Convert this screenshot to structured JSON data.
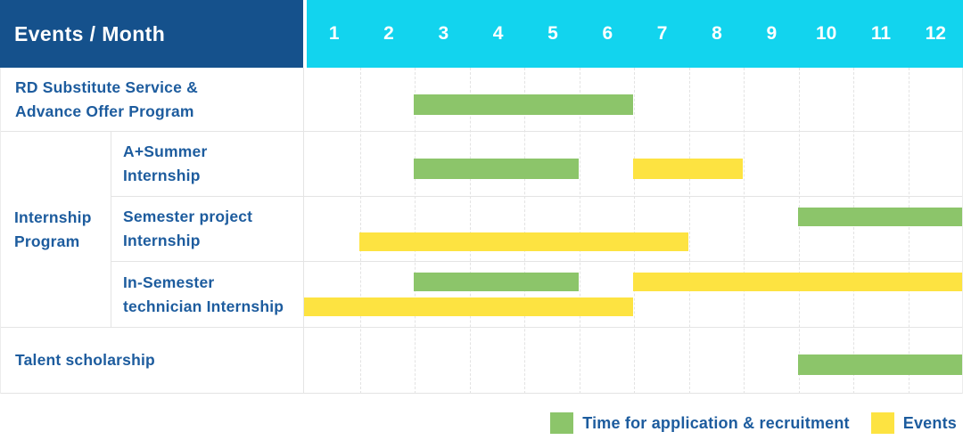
{
  "colors": {
    "header_bg": "#15518c",
    "months_bg": "#12d4ee",
    "bar_green": "#8cc56a",
    "bar_yellow": "#fde341",
    "label_text": "#1d5c9e",
    "grid_line": "#e4e4e4"
  },
  "header": {
    "title": "Events / Month",
    "months": [
      "1",
      "2",
      "3",
      "4",
      "5",
      "6",
      "7",
      "8",
      "9",
      "10",
      "11",
      "12"
    ]
  },
  "rows": {
    "rd": {
      "label": "RD Substitute Service &\nAdvance Offer Program",
      "bars": [
        {
          "color": "green",
          "line": "single",
          "start": 3,
          "end": 7
        }
      ]
    },
    "internship": {
      "label": "Internship\nProgram",
      "subrows": [
        {
          "label": "A+Summer\nInternship",
          "bars": [
            {
              "color": "green",
              "line": "single",
              "start": 3,
              "end": 6
            },
            {
              "color": "yellow",
              "line": "single",
              "start": 7,
              "end": 9
            }
          ]
        },
        {
          "label": "Semester project\nInternship",
          "bars": [
            {
              "color": "green",
              "line": "upper",
              "start": 10,
              "end": 13
            },
            {
              "color": "yellow",
              "line": "lower",
              "start": 2,
              "end": 8
            }
          ]
        },
        {
          "label": "In-Semester\ntechnician Internship",
          "bars": [
            {
              "color": "green",
              "line": "upper",
              "start": 3,
              "end": 6
            },
            {
              "color": "yellow",
              "line": "upper",
              "start": 7,
              "end": 13
            },
            {
              "color": "yellow",
              "line": "lower",
              "start": 1,
              "end": 7
            }
          ]
        }
      ]
    },
    "talent": {
      "label": "Talent scholarship",
      "bars": [
        {
          "color": "green",
          "line": "single",
          "start": 10,
          "end": 13
        }
      ]
    }
  },
  "legend": {
    "items": [
      {
        "color": "green",
        "label": "Time for application & recruitment"
      },
      {
        "color": "yellow",
        "label": "Events"
      }
    ]
  },
  "chart_data": {
    "type": "bar",
    "subtype": "gantt-schedule",
    "title": "Events / Month",
    "x_axis": {
      "label": "Month",
      "ticks": [
        "1",
        "2",
        "3",
        "4",
        "5",
        "6",
        "7",
        "8",
        "9",
        "10",
        "11",
        "12"
      ],
      "range": [
        1,
        12
      ]
    },
    "legend_entries": [
      "Time for application & recruitment",
      "Events"
    ],
    "legend_position": "bottom-right",
    "grid": "dashed-vertical-month-lines",
    "rows": [
      {
        "event": "RD Substitute Service & Advance Offer Program",
        "group": null,
        "application_recruitment_months": [
          [
            3,
            6
          ]
        ],
        "events_months": []
      },
      {
        "event": "A+Summer Internship",
        "group": "Internship Program",
        "application_recruitment_months": [
          [
            3,
            5
          ]
        ],
        "events_months": [
          [
            7,
            8
          ]
        ]
      },
      {
        "event": "Semester project Internship",
        "group": "Internship Program",
        "application_recruitment_months": [
          [
            10,
            12
          ]
        ],
        "events_months": [
          [
            2,
            7
          ]
        ]
      },
      {
        "event": "In-Semester technician Internship",
        "group": "Internship Program",
        "application_recruitment_months": [
          [
            3,
            5
          ]
        ],
        "events_months": [
          [
            1,
            6
          ],
          [
            7,
            12
          ]
        ]
      },
      {
        "event": "Talent scholarship",
        "group": null,
        "application_recruitment_months": [
          [
            10,
            12
          ]
        ],
        "events_months": []
      }
    ]
  }
}
